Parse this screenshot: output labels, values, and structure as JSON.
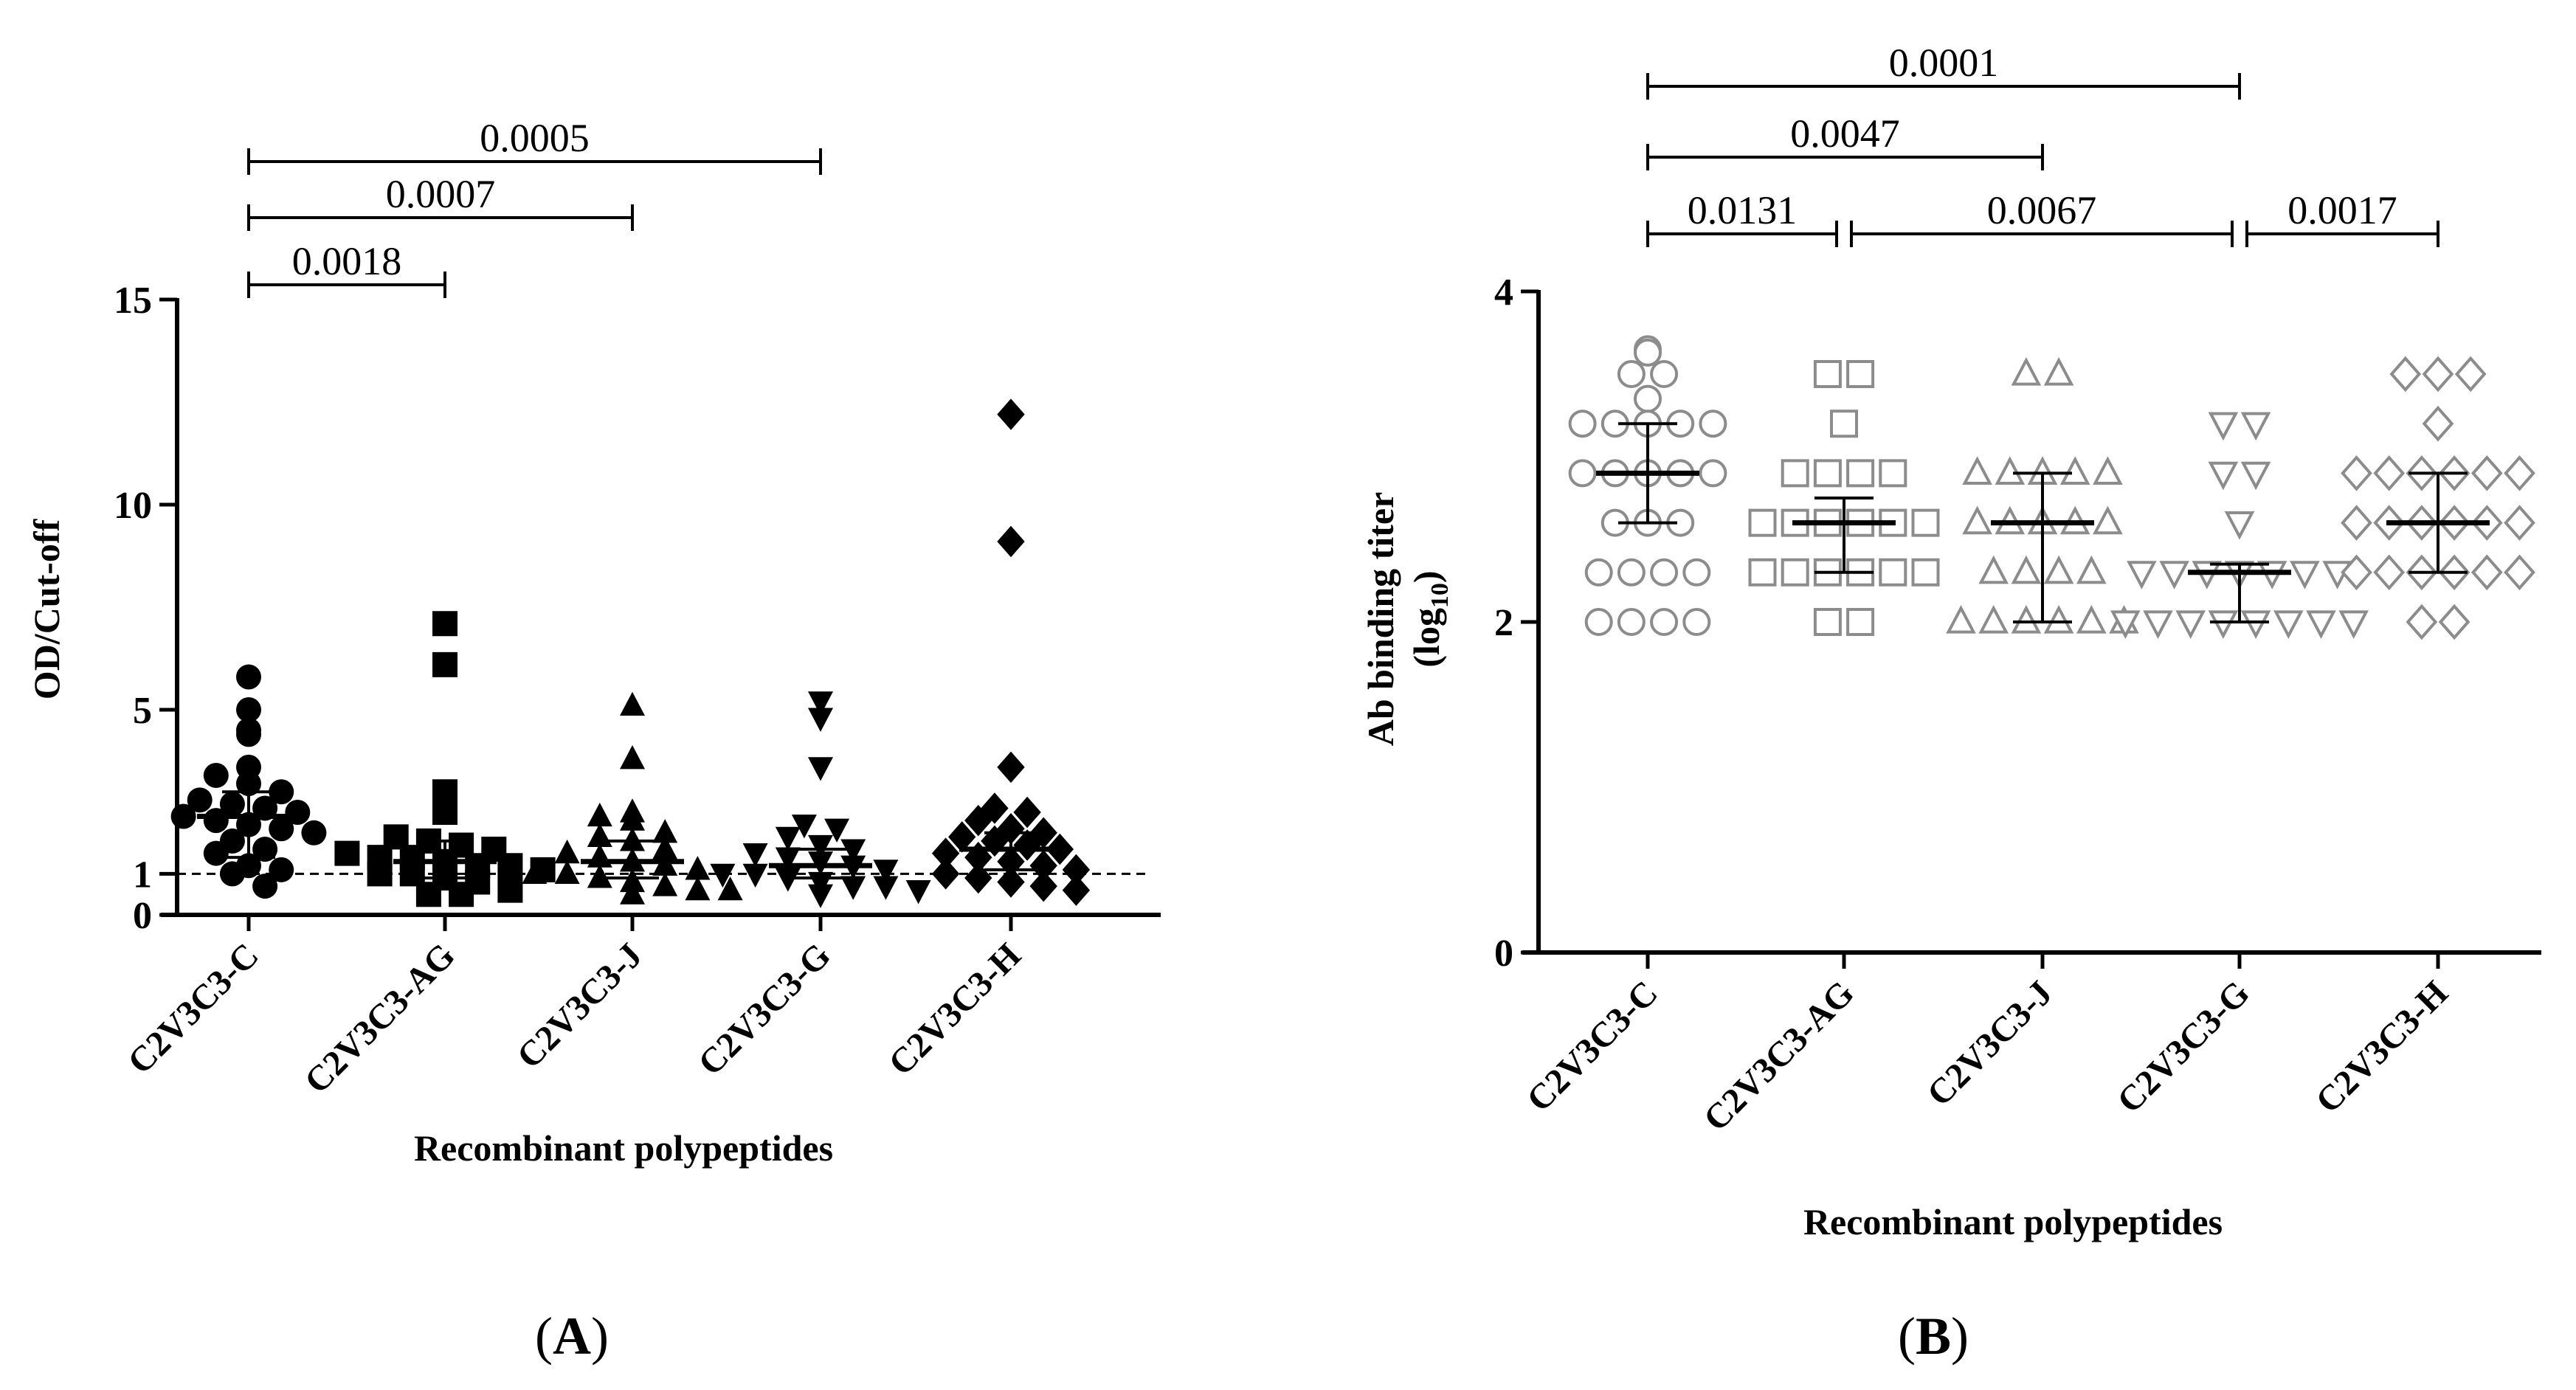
{
  "chart_data": [
    {
      "type": "scatter",
      "panel_label": "(A)",
      "panel_letter": "A",
      "xlabel": "Recombinant polypeptides",
      "ylabel": "OD/Cut-off",
      "ylim": [
        0,
        15
      ],
      "yticks": [
        "0",
        "1",
        "5",
        "10",
        "15"
      ],
      "categories": [
        "C2V3C3-C",
        "C2V3C3-AG",
        "C2V3C3-J",
        "C2V3C3-G",
        "C2V3C3-H"
      ],
      "reference_line": 1,
      "marker_color": "#000000",
      "series": [
        {
          "name": "C2V3C3-C",
          "marker": "circle",
          "median": 2.4,
          "iqr": [
            1.4,
            3.0
          ],
          "values": [
            5.8,
            5.0,
            4.5,
            4.4,
            3.6,
            3.4,
            3.2,
            3.0,
            2.8,
            2.7,
            2.6,
            2.5,
            2.4,
            2.3,
            2.2,
            2.1,
            2.0,
            1.8,
            1.6,
            1.5,
            1.2,
            1.1,
            1.0,
            0.7
          ]
        },
        {
          "name": "C2V3C3-AG",
          "marker": "square",
          "median": 1.3,
          "iqr": [
            0.9,
            1.8
          ],
          "values": [
            7.1,
            6.1,
            3.0,
            2.5,
            1.9,
            1.8,
            1.7,
            1.6,
            1.5,
            1.4,
            1.4,
            1.3,
            1.2,
            1.2,
            1.1,
            1.0,
            1.0,
            0.9,
            0.8,
            0.6,
            0.5,
            0.5
          ]
        },
        {
          "name": "C2V3C3-J",
          "marker": "triangle-up",
          "median": 1.3,
          "iqr": [
            0.9,
            1.8
          ],
          "values": [
            5.1,
            3.8,
            2.5,
            2.4,
            2.3,
            2.0,
            1.9,
            1.8,
            1.6,
            1.5,
            1.4,
            1.3,
            1.2,
            1.1,
            1.0,
            1.0,
            0.9,
            0.8,
            0.7,
            0.6,
            0.6,
            0.5
          ]
        },
        {
          "name": "C2V3C3-G",
          "marker": "triangle-down",
          "median": 1.2,
          "iqr": [
            0.9,
            1.6
          ],
          "values": [
            5.2,
            4.8,
            3.6,
            2.2,
            2.1,
            1.9,
            1.7,
            1.6,
            1.5,
            1.4,
            1.3,
            1.2,
            1.1,
            1.0,
            1.0,
            0.9,
            0.8,
            0.7,
            0.7,
            0.6,
            0.5
          ]
        },
        {
          "name": "C2V3C3-H",
          "marker": "diamond",
          "median": 1.6,
          "iqr": [
            1.1,
            2.0
          ],
          "values": [
            12.2,
            9.1,
            3.6,
            2.6,
            2.5,
            2.3,
            2.1,
            2.0,
            1.9,
            1.8,
            1.7,
            1.6,
            1.5,
            1.4,
            1.3,
            1.2,
            1.1,
            1.0,
            0.9,
            0.8,
            0.7,
            0.6
          ]
        }
      ],
      "comparisons": [
        {
          "from": 0,
          "to": 1,
          "p": "0.0018",
          "level": 0
        },
        {
          "from": 0,
          "to": 2,
          "p": "0.0007",
          "level": 1
        },
        {
          "from": 0,
          "to": 3,
          "p": "0.0005",
          "level": 2
        }
      ]
    },
    {
      "type": "scatter",
      "panel_label": "(B)",
      "panel_letter": "B",
      "xlabel": "Recombinant polypeptides",
      "ylabel": "Ab binding titer",
      "ylabel_line2_prefix": "(log",
      "ylabel_line2_sub": "10",
      "ylabel_line2_suffix": ")",
      "ylim": [
        0,
        4
      ],
      "yticks": [
        "0",
        "2",
        "4"
      ],
      "categories": [
        "C2V3C3-C",
        "C2V3C3-AG",
        "C2V3C3-J",
        "C2V3C3-G",
        "C2V3C3-H"
      ],
      "marker_color": "#8c8c8c",
      "series": [
        {
          "name": "C2V3C3-C",
          "marker": "circle",
          "median": 2.9,
          "iqr": [
            2.6,
            3.2
          ],
          "values": [
            3.65,
            3.63,
            3.5,
            3.5,
            3.35,
            3.2,
            3.2,
            3.2,
            3.2,
            3.2,
            2.9,
            2.9,
            2.9,
            2.9,
            2.9,
            2.6,
            2.6,
            2.6,
            2.3,
            2.3,
            2.3,
            2.3,
            2.0,
            2.0,
            2.0,
            2.0
          ]
        },
        {
          "name": "C2V3C3-AG",
          "marker": "square",
          "median": 2.6,
          "iqr": [
            2.3,
            2.75
          ],
          "values": [
            3.5,
            3.5,
            3.2,
            2.9,
            2.9,
            2.9,
            2.9,
            2.6,
            2.6,
            2.6,
            2.6,
            2.6,
            2.6,
            2.3,
            2.3,
            2.3,
            2.3,
            2.3,
            2.3,
            2.0,
            2.0
          ]
        },
        {
          "name": "C2V3C3-J",
          "marker": "triangle-up",
          "median": 2.6,
          "iqr": [
            2.0,
            2.9
          ],
          "values": [
            3.5,
            3.5,
            2.9,
            2.9,
            2.9,
            2.9,
            2.9,
            2.6,
            2.6,
            2.6,
            2.6,
            2.6,
            2.3,
            2.3,
            2.3,
            2.3,
            2.0,
            2.0,
            2.0,
            2.0,
            2.0,
            2.0
          ]
        },
        {
          "name": "C2V3C3-G",
          "marker": "triangle-down",
          "median": 2.3,
          "iqr": [
            2.0,
            2.35
          ],
          "values": [
            3.2,
            3.2,
            2.9,
            2.9,
            2.6,
            2.3,
            2.3,
            2.3,
            2.3,
            2.3,
            2.3,
            2.3,
            2.0,
            2.0,
            2.0,
            2.0,
            2.0,
            2.0,
            2.0,
            2.0
          ]
        },
        {
          "name": "C2V3C3-H",
          "marker": "diamond",
          "median": 2.6,
          "iqr": [
            2.3,
            2.9
          ],
          "values": [
            3.5,
            3.5,
            3.5,
            3.2,
            2.9,
            2.9,
            2.9,
            2.9,
            2.9,
            2.9,
            2.6,
            2.6,
            2.6,
            2.6,
            2.6,
            2.6,
            2.3,
            2.3,
            2.3,
            2.3,
            2.3,
            2.3,
            2.0,
            2.0
          ]
        }
      ],
      "comparisons": [
        {
          "from": 0,
          "to": 1,
          "p": "0.0131",
          "level": 0
        },
        {
          "from": 1,
          "to": 3,
          "p": "0.0067",
          "level": 0
        },
        {
          "from": 3,
          "to": 4,
          "p": "0.0017",
          "level": 0
        },
        {
          "from": 0,
          "to": 2,
          "p": "0.0047",
          "level": 1
        },
        {
          "from": 0,
          "to": 3,
          "p": "0.0001",
          "level": 2
        }
      ]
    }
  ]
}
